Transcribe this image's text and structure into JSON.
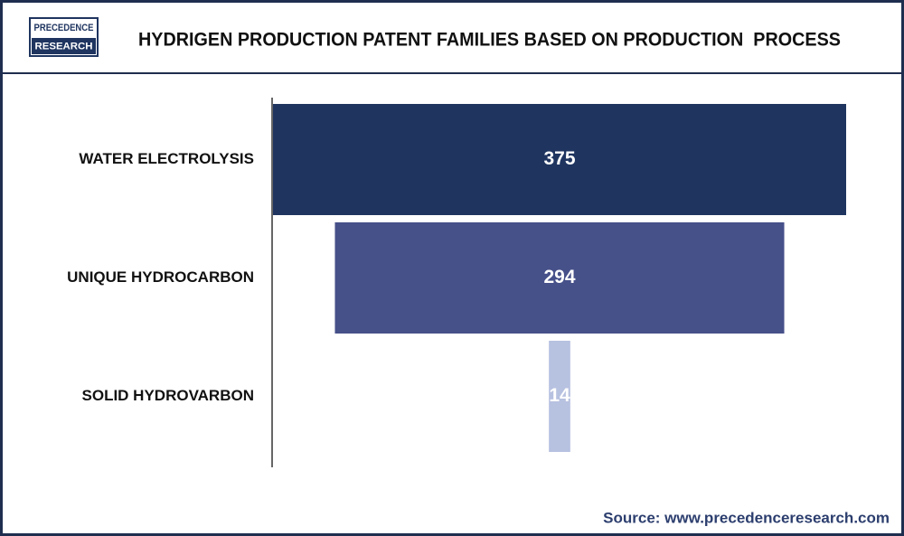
{
  "logo": {
    "line1": "PRECEDENCE",
    "line2": "RESEARCH"
  },
  "source": "Source: www.precedenceresearch.com",
  "chart_data": {
    "type": "funnel",
    "title": "HYDRIGEN PRODUCTION PATENT FAMILIES BASED ON PRODUCTION  PROCESS",
    "categories": [
      "WATER ELECTROLYSIS",
      "UNIQUE HYDROCARBON",
      "SOLID HYDROVARBON"
    ],
    "values": [
      375,
      294,
      14
    ],
    "colors": [
      "#1f3560",
      "#465089",
      "#b7c1e0"
    ]
  }
}
